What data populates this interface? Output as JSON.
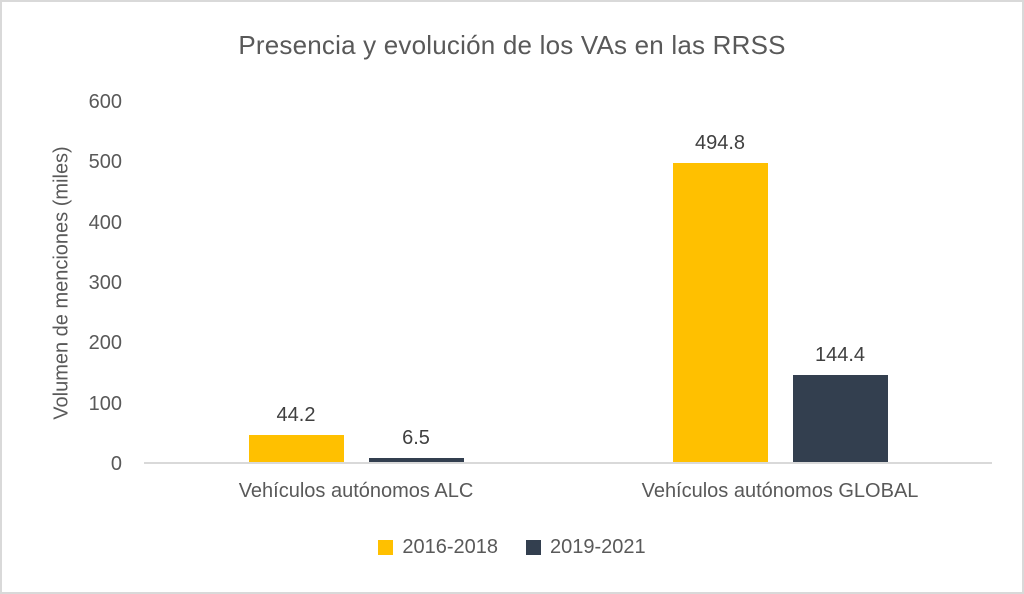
{
  "chart_data": {
    "type": "bar",
    "title": "Presencia y evolución de los VAs en las RRSS",
    "ylabel": "Volumen de menciones (miles)",
    "xlabel": "",
    "categories": [
      "Vehículos autónomos ALC",
      "Vehículos autónomos GLOBAL"
    ],
    "series": [
      {
        "name": "2016-2018",
        "color": "#FFC000",
        "values": [
          44.2,
          494.8
        ],
        "value_labels": [
          "44.2",
          "494.8"
        ]
      },
      {
        "name": "2019-2021",
        "color": "#333F4F",
        "values": [
          6.5,
          144.4
        ],
        "value_labels": [
          "6.5",
          "144.4"
        ]
      }
    ],
    "ylim": [
      0,
      600
    ],
    "yticks": [
      0,
      100,
      200,
      300,
      400,
      500,
      600
    ],
    "grid": false,
    "legend_position": "bottom",
    "data_labels_shown": true
  },
  "colors": {
    "title_text": "#595959",
    "axis_text": "#595959",
    "data_label_text": "#404040",
    "axis_line": "#D9D9D9",
    "frame_border": "#D9D9D9",
    "background": "#FFFFFF"
  }
}
